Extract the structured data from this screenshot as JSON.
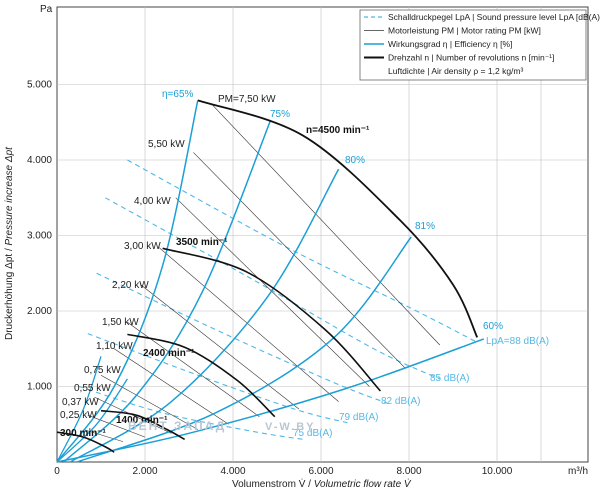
{
  "chart_data": {
    "type": "line",
    "y_unit": "Pa",
    "x_unit": "m³/h",
    "xlabel_de": "Volumenstrom V̇ / ",
    "xlabel_en": "Volumetric flow rate V̇",
    "ylabel_de": "Druckerhöhung Δpt / ",
    "ylabel_en": "Pressure increase Δpt",
    "xlim": [
      0,
      12000
    ],
    "ylim": [
      0,
      6000
    ],
    "x_ticks": [
      0,
      2000,
      4000,
      6000,
      8000,
      10000
    ],
    "x_tick_labels": [
      "0",
      "2.000",
      "4.000",
      "6.000",
      "8.000",
      "10.000"
    ],
    "y_ticks": [
      1000,
      2000,
      3000,
      4000,
      5000
    ],
    "y_tick_labels": [
      "1.000",
      "2.000",
      "3.000",
      "4.000",
      "5.000"
    ],
    "grid": true,
    "legend": {
      "placement": "top-right",
      "entries": [
        {
          "style": "dashed-lightblue",
          "text": "Schalldruckpegel LpA | Sound pressure level LpA [dB(A)]"
        },
        {
          "style": "thin-dark",
          "text": "Motorleistung PM | Motor rating PM [kW]"
        },
        {
          "style": "solid-blue",
          "text": "Wirkungsgrad η | Efficiency η [%]"
        },
        {
          "style": "thick-black",
          "text": "Drehzahl n | Number of revolutions n [min⁻¹]"
        },
        {
          "style": "none",
          "text": "Luftdichte | Air density ρ = 1,2 kg/m³"
        }
      ]
    },
    "speed_curves": [
      {
        "label": "300 min⁻¹",
        "points": [
          [
            0,
            395
          ],
          [
            600,
            330
          ],
          [
            1100,
            200
          ],
          [
            1300,
            130
          ]
        ]
      },
      {
        "label": "1400 min⁻¹",
        "points": [
          [
            1000,
            680
          ],
          [
            1800,
            620
          ],
          [
            2500,
            430
          ],
          [
            2900,
            300
          ]
        ]
      },
      {
        "label": "2400 min⁻¹",
        "points": [
          [
            1600,
            1690
          ],
          [
            2900,
            1520
          ],
          [
            4100,
            1080
          ],
          [
            4950,
            600
          ]
        ]
      },
      {
        "label": "3500 min⁻¹",
        "points": [
          [
            2400,
            2830
          ],
          [
            4300,
            2520
          ],
          [
            6100,
            1750
          ],
          [
            7350,
            940
          ]
        ]
      },
      {
        "label": "n=4500 min⁻¹",
        "points": [
          [
            3200,
            4790
          ],
          [
            5600,
            4320
          ],
          [
            7800,
            3200
          ],
          [
            9000,
            2350
          ],
          [
            9550,
            1650
          ]
        ]
      }
    ],
    "efficiency_curves": [
      {
        "label": "η=65%",
        "points": [
          [
            0,
            0
          ],
          [
            1300,
            1000
          ],
          [
            2400,
            2600
          ],
          [
            3200,
            4790
          ]
        ]
      },
      {
        "label": "75%",
        "points": [
          [
            150,
            0
          ],
          [
            1800,
            880
          ],
          [
            3300,
            2250
          ],
          [
            4850,
            4520
          ]
        ]
      },
      {
        "label": "80%",
        "points": [
          [
            300,
            0
          ],
          [
            2600,
            800
          ],
          [
            4800,
            2200
          ],
          [
            6400,
            3880
          ]
        ]
      },
      {
        "label": "81%",
        "points": [
          [
            450,
            0
          ],
          [
            3600,
            650
          ],
          [
            6300,
            1650
          ],
          [
            8050,
            2980
          ]
        ]
      },
      {
        "label": "60%",
        "points": [
          [
            0,
            0
          ],
          [
            3000,
            380
          ],
          [
            6500,
            960
          ],
          [
            9700,
            1630
          ]
        ]
      }
    ],
    "power_labels": [
      "0,25 kW",
      "0,37 kW",
      "0,55 kW",
      "0,75 kW",
      "1,10 kW",
      "1,50 kW",
      "2,20 kW",
      "3,00 kW",
      "4,00 kW",
      "5,50 kW",
      "PM=7,50 kW"
    ],
    "sound_labels": [
      "75 dB(A)",
      "79 dB(A)",
      "82 dB(A)",
      "85 dB(A)",
      "LpA=88 dB(A)"
    ],
    "watermark": "ВЕНТ ЗАПАД",
    "watermark2": "V-W.BY"
  }
}
